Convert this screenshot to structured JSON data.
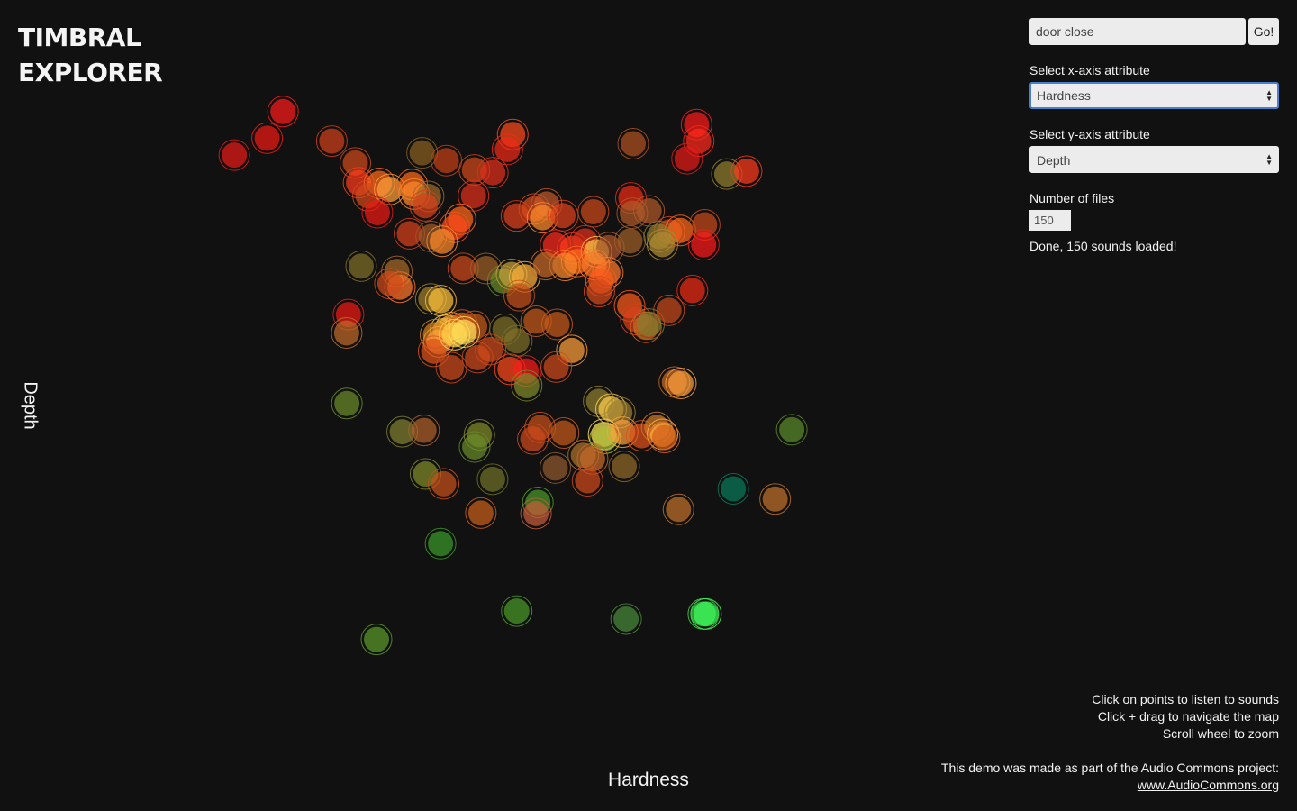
{
  "app": {
    "title": "TIMBRAL\nEXPLORER"
  },
  "axes": {
    "x_label": "Hardness",
    "y_label": "Depth"
  },
  "search": {
    "value": "door close",
    "button_label": "Go!"
  },
  "x_select": {
    "label": "Select x-axis attribute",
    "value": "Hardness"
  },
  "y_select": {
    "label": "Select y-axis attribute",
    "value": "Depth"
  },
  "num_files": {
    "label": "Number of files",
    "value": "150"
  },
  "status": "Done, 150 sounds loaded!",
  "instructions": [
    "Click on points to listen to sounds",
    "Click + drag to navigate the map",
    "Scroll wheel to zoom"
  ],
  "footer": {
    "text": "This demo was made as part of the Audio Commons project:",
    "link_text": "www.AudioCommons.org"
  },
  "chart_data": {
    "type": "scatter",
    "xlabel": "Hardness",
    "ylabel": "Depth",
    "xlim": [
      0,
      100
    ],
    "ylim": [
      0,
      100
    ],
    "grid": false,
    "points": [
      {
        "x": 8.56,
        "y": 88.98,
        "color": "#ff1a1a"
      },
      {
        "x": 6.21,
        "y": 85.08,
        "color": "#ee1a14"
      },
      {
        "x": 1.35,
        "y": 82.62,
        "color": "#e81a16"
      },
      {
        "x": 15.78,
        "y": 84.66,
        "color": "#d0401a"
      },
      {
        "x": 19.27,
        "y": 81.47,
        "color": "#d04a1a"
      },
      {
        "x": 29.15,
        "y": 82.94,
        "color": "#8a6020"
      },
      {
        "x": 32.75,
        "y": 81.81,
        "color": "#c44018"
      },
      {
        "x": 42.57,
        "y": 85.63,
        "color": "#ff4a1a"
      },
      {
        "x": 41.78,
        "y": 83.43,
        "color": "#f02a16"
      },
      {
        "x": 36.9,
        "y": 80.45,
        "color": "#d0481a"
      },
      {
        "x": 39.62,
        "y": 80.05,
        "color": "#e0301a"
      },
      {
        "x": 60.4,
        "y": 84.28,
        "color": "#b05020"
      },
      {
        "x": 69.78,
        "y": 87.08,
        "color": "#ff1a1a"
      },
      {
        "x": 70.1,
        "y": 84.66,
        "color": "#ff2a1a"
      },
      {
        "x": 68.37,
        "y": 82.09,
        "color": "#e81a16"
      },
      {
        "x": 74.26,
        "y": 79.85,
        "color": "#908030"
      },
      {
        "x": 77.19,
        "y": 80.27,
        "color": "#ff3a1a"
      },
      {
        "x": 19.75,
        "y": 78.59,
        "color": "#ff3a1a"
      },
      {
        "x": 22.83,
        "y": 78.49,
        "color": "#ff6a1a"
      },
      {
        "x": 21.14,
        "y": 76.69,
        "color": "#d04a1a"
      },
      {
        "x": 24.35,
        "y": 77.61,
        "color": "#ffa03a"
      },
      {
        "x": 27.67,
        "y": 78.33,
        "color": "#ff6a1a"
      },
      {
        "x": 27.96,
        "y": 76.93,
        "color": "#ff8a2a"
      },
      {
        "x": 30.12,
        "y": 76.58,
        "color": "#a06a28"
      },
      {
        "x": 29.6,
        "y": 75.22,
        "color": "#d8401a"
      },
      {
        "x": 22.53,
        "y": 74.21,
        "color": "#ee1a14"
      },
      {
        "x": 36.76,
        "y": 76.67,
        "color": "#e0301a"
      },
      {
        "x": 34.84,
        "y": 73.25,
        "color": "#ff6a1a"
      },
      {
        "x": 33.92,
        "y": 72.07,
        "color": "#ff4a1a"
      },
      {
        "x": 27.27,
        "y": 71.13,
        "color": "#d8401a"
      },
      {
        "x": 30.5,
        "y": 70.72,
        "color": "#a05a28"
      },
      {
        "x": 32.11,
        "y": 70.03,
        "color": "#ff8a2a"
      },
      {
        "x": 43.12,
        "y": 73.73,
        "color": "#e0401a"
      },
      {
        "x": 45.75,
        "y": 74.76,
        "color": "#d84a1a"
      },
      {
        "x": 47.59,
        "y": 75.47,
        "color": "#c0582a"
      },
      {
        "x": 46.97,
        "y": 73.47,
        "color": "#ff8a2a"
      },
      {
        "x": 50.0,
        "y": 73.78,
        "color": "#e0401a"
      },
      {
        "x": 54.51,
        "y": 74.35,
        "color": "#cc4a1a"
      },
      {
        "x": 60.06,
        "y": 76.36,
        "color": "#ee2a14"
      },
      {
        "x": 60.26,
        "y": 74.13,
        "color": "#b05a28"
      },
      {
        "x": 62.75,
        "y": 74.47,
        "color": "#b05a28"
      },
      {
        "x": 65.75,
        "y": 71.4,
        "color": "#d8401a"
      },
      {
        "x": 67.38,
        "y": 71.61,
        "color": "#ff6a1a"
      },
      {
        "x": 70.98,
        "y": 72.43,
        "color": "#c84a1a"
      },
      {
        "x": 70.84,
        "y": 69.52,
        "color": "#ff1a1a"
      },
      {
        "x": 48.9,
        "y": 69.47,
        "color": "#ff2a1a"
      },
      {
        "x": 51.43,
        "y": 69.02,
        "color": "#ff3a1a"
      },
      {
        "x": 53.29,
        "y": 70.09,
        "color": "#e0301a"
      },
      {
        "x": 54.95,
        "y": 68.51,
        "color": "#ffd04a"
      },
      {
        "x": 56.8,
        "y": 69.12,
        "color": "#b0582a"
      },
      {
        "x": 52.05,
        "y": 67.09,
        "color": "#ff6a1a"
      },
      {
        "x": 50.3,
        "y": 66.51,
        "color": "#ff8a2a"
      },
      {
        "x": 54.61,
        "y": 66.62,
        "color": "#ff7a2a"
      },
      {
        "x": 56.65,
        "y": 65.46,
        "color": "#ff7a2a"
      },
      {
        "x": 59.93,
        "y": 70.07,
        "color": "#a06028"
      },
      {
        "x": 64.25,
        "y": 70.73,
        "color": "#908030"
      },
      {
        "x": 64.72,
        "y": 69.54,
        "color": "#b08a30"
      },
      {
        "x": 20.13,
        "y": 66.4,
        "color": "#807028"
      },
      {
        "x": 25.41,
        "y": 65.64,
        "color": "#a86a28"
      },
      {
        "x": 25.87,
        "y": 63.33,
        "color": "#ff7a2a"
      },
      {
        "x": 24.39,
        "y": 63.85,
        "color": "#d04a1a"
      },
      {
        "x": 35.24,
        "y": 66.07,
        "color": "#d04a1a"
      },
      {
        "x": 38.62,
        "y": 66.06,
        "color": "#a06028"
      },
      {
        "x": 41.11,
        "y": 64.25,
        "color": "#6a8a28"
      },
      {
        "x": 42.4,
        "y": 65.19,
        "color": "#c8a03a"
      },
      {
        "x": 44.33,
        "y": 64.84,
        "color": "#ffb03a"
      },
      {
        "x": 43.53,
        "y": 62.09,
        "color": "#c8501a"
      },
      {
        "x": 47.46,
        "y": 66.63,
        "color": "#c86a28"
      },
      {
        "x": 55.64,
        "y": 64.25,
        "color": "#ff5a1a"
      },
      {
        "x": 55.39,
        "y": 62.68,
        "color": "#d84a1a"
      },
      {
        "x": 30.44,
        "y": 61.61,
        "color": "#a0802a"
      },
      {
        "x": 31.92,
        "y": 61.37,
        "color": "#ffc03a"
      },
      {
        "x": 18.25,
        "y": 59.33,
        "color": "#ee1a14"
      },
      {
        "x": 17.99,
        "y": 56.65,
        "color": "#c06a28"
      },
      {
        "x": 32.6,
        "y": 57.04,
        "color": "#ffd04a"
      },
      {
        "x": 33.43,
        "y": 57.42,
        "color": "#ffb03a"
      },
      {
        "x": 35.1,
        "y": 57.79,
        "color": "#e0601a"
      },
      {
        "x": 36.94,
        "y": 57.62,
        "color": "#c85a1a"
      },
      {
        "x": 31.13,
        "y": 56.39,
        "color": "#d0801a"
      },
      {
        "x": 31.63,
        "y": 55.35,
        "color": "#ffa03a"
      },
      {
        "x": 30.86,
        "y": 53.97,
        "color": "#e0501a"
      },
      {
        "x": 33.94,
        "y": 56.4,
        "color": "#ffd04a"
      },
      {
        "x": 35.4,
        "y": 56.77,
        "color": "#ffe05a"
      },
      {
        "x": 41.43,
        "y": 57.18,
        "color": "#807028"
      },
      {
        "x": 43.18,
        "y": 55.49,
        "color": "#807028"
      },
      {
        "x": 46.02,
        "y": 58.36,
        "color": "#c85a1a"
      },
      {
        "x": 49.13,
        "y": 57.89,
        "color": "#c85a1a"
      },
      {
        "x": 39.28,
        "y": 54.23,
        "color": "#d04a1a"
      },
      {
        "x": 37.35,
        "y": 53.04,
        "color": "#d04a1a"
      },
      {
        "x": 33.48,
        "y": 51.58,
        "color": "#d04a1a"
      },
      {
        "x": 42.16,
        "y": 51.34,
        "color": "#ff4a1a"
      },
      {
        "x": 44.54,
        "y": 51.11,
        "color": "#ff1a1a"
      },
      {
        "x": 44.64,
        "y": 48.94,
        "color": "#808a28"
      },
      {
        "x": 51.32,
        "y": 54.09,
        "color": "#ffa03a"
      },
      {
        "x": 49.01,
        "y": 51.66,
        "color": "#d04a1a"
      },
      {
        "x": 59.87,
        "y": 60.61,
        "color": "#ff5a1a"
      },
      {
        "x": 60.79,
        "y": 58.61,
        "color": "#d8401a"
      },
      {
        "x": 62.29,
        "y": 57.46,
        "color": "#e0601a"
      },
      {
        "x": 62.74,
        "y": 57.95,
        "color": "#808030"
      },
      {
        "x": 65.7,
        "y": 59.95,
        "color": "#c84a1a"
      },
      {
        "x": 69.17,
        "y": 62.84,
        "color": "#ee2a14"
      },
      {
        "x": 66.5,
        "y": 49.47,
        "color": "#c86a28"
      },
      {
        "x": 67.46,
        "y": 49.28,
        "color": "#ffa03a"
      },
      {
        "x": 18.02,
        "y": 46.35,
        "color": "#6a8a28"
      },
      {
        "x": 26.21,
        "y": 42.22,
        "color": "#808030"
      },
      {
        "x": 29.43,
        "y": 42.42,
        "color": "#b0602a"
      },
      {
        "x": 37.63,
        "y": 41.78,
        "color": "#808a28"
      },
      {
        "x": 36.93,
        "y": 40.0,
        "color": "#6a8a28"
      },
      {
        "x": 46.62,
        "y": 42.84,
        "color": "#c8501a"
      },
      {
        "x": 45.54,
        "y": 41.17,
        "color": "#d04a1a"
      },
      {
        "x": 50.1,
        "y": 42.04,
        "color": "#c85a1a"
      },
      {
        "x": 55.28,
        "y": 46.66,
        "color": "#908030"
      },
      {
        "x": 57.13,
        "y": 45.52,
        "color": "#ffd04a"
      },
      {
        "x": 58.43,
        "y": 45.02,
        "color": "#a08030"
      },
      {
        "x": 56.02,
        "y": 41.85,
        "color": "#ffe05a"
      },
      {
        "x": 56.25,
        "y": 41.27,
        "color": "#b0c03a"
      },
      {
        "x": 58.84,
        "y": 42.16,
        "color": "#ffa03a"
      },
      {
        "x": 61.65,
        "y": 41.63,
        "color": "#e0501a"
      },
      {
        "x": 53.02,
        "y": 38.79,
        "color": "#b0702a"
      },
      {
        "x": 54.39,
        "y": 38.25,
        "color": "#c86a28"
      },
      {
        "x": 63.89,
        "y": 42.86,
        "color": "#d07a28"
      },
      {
        "x": 64.74,
        "y": 41.84,
        "color": "#ffb03a"
      },
      {
        "x": 65.05,
        "y": 41.37,
        "color": "#d8601a"
      },
      {
        "x": 29.66,
        "y": 36.05,
        "color": "#808a28"
      },
      {
        "x": 32.34,
        "y": 34.62,
        "color": "#c8501a"
      },
      {
        "x": 39.59,
        "y": 35.28,
        "color": "#707028"
      },
      {
        "x": 48.87,
        "y": 36.92,
        "color": "#905a30"
      },
      {
        "x": 53.64,
        "y": 35.06,
        "color": "#d04a1a"
      },
      {
        "x": 59.07,
        "y": 37.16,
        "color": "#906a2a"
      },
      {
        "x": 75.22,
        "y": 33.88,
        "color": "#0a7a5a"
      },
      {
        "x": 83.88,
        "y": 42.52,
        "color": "#5a8a2a"
      },
      {
        "x": 37.85,
        "y": 30.35,
        "color": "#c8601a"
      },
      {
        "x": 46.29,
        "y": 31.91,
        "color": "#4a9a28"
      },
      {
        "x": 46.01,
        "y": 30.28,
        "color": "#c85a3a"
      },
      {
        "x": 67.1,
        "y": 30.88,
        "color": "#c0702a"
      },
      {
        "x": 81.42,
        "y": 32.4,
        "color": "#c0702a"
      },
      {
        "x": 31.88,
        "y": 25.88,
        "color": "#3a9a28"
      },
      {
        "x": 43.16,
        "y": 16.04,
        "color": "#4a9a28"
      },
      {
        "x": 59.35,
        "y": 14.87,
        "color": "#4a8a3a"
      },
      {
        "x": 70.79,
        "y": 15.61,
        "color": "#4ad04a"
      },
      {
        "x": 71.18,
        "y": 15.61,
        "color": "#3aff5a"
      },
      {
        "x": 22.4,
        "y": 11.89,
        "color": "#5a9a28"
      }
    ]
  }
}
